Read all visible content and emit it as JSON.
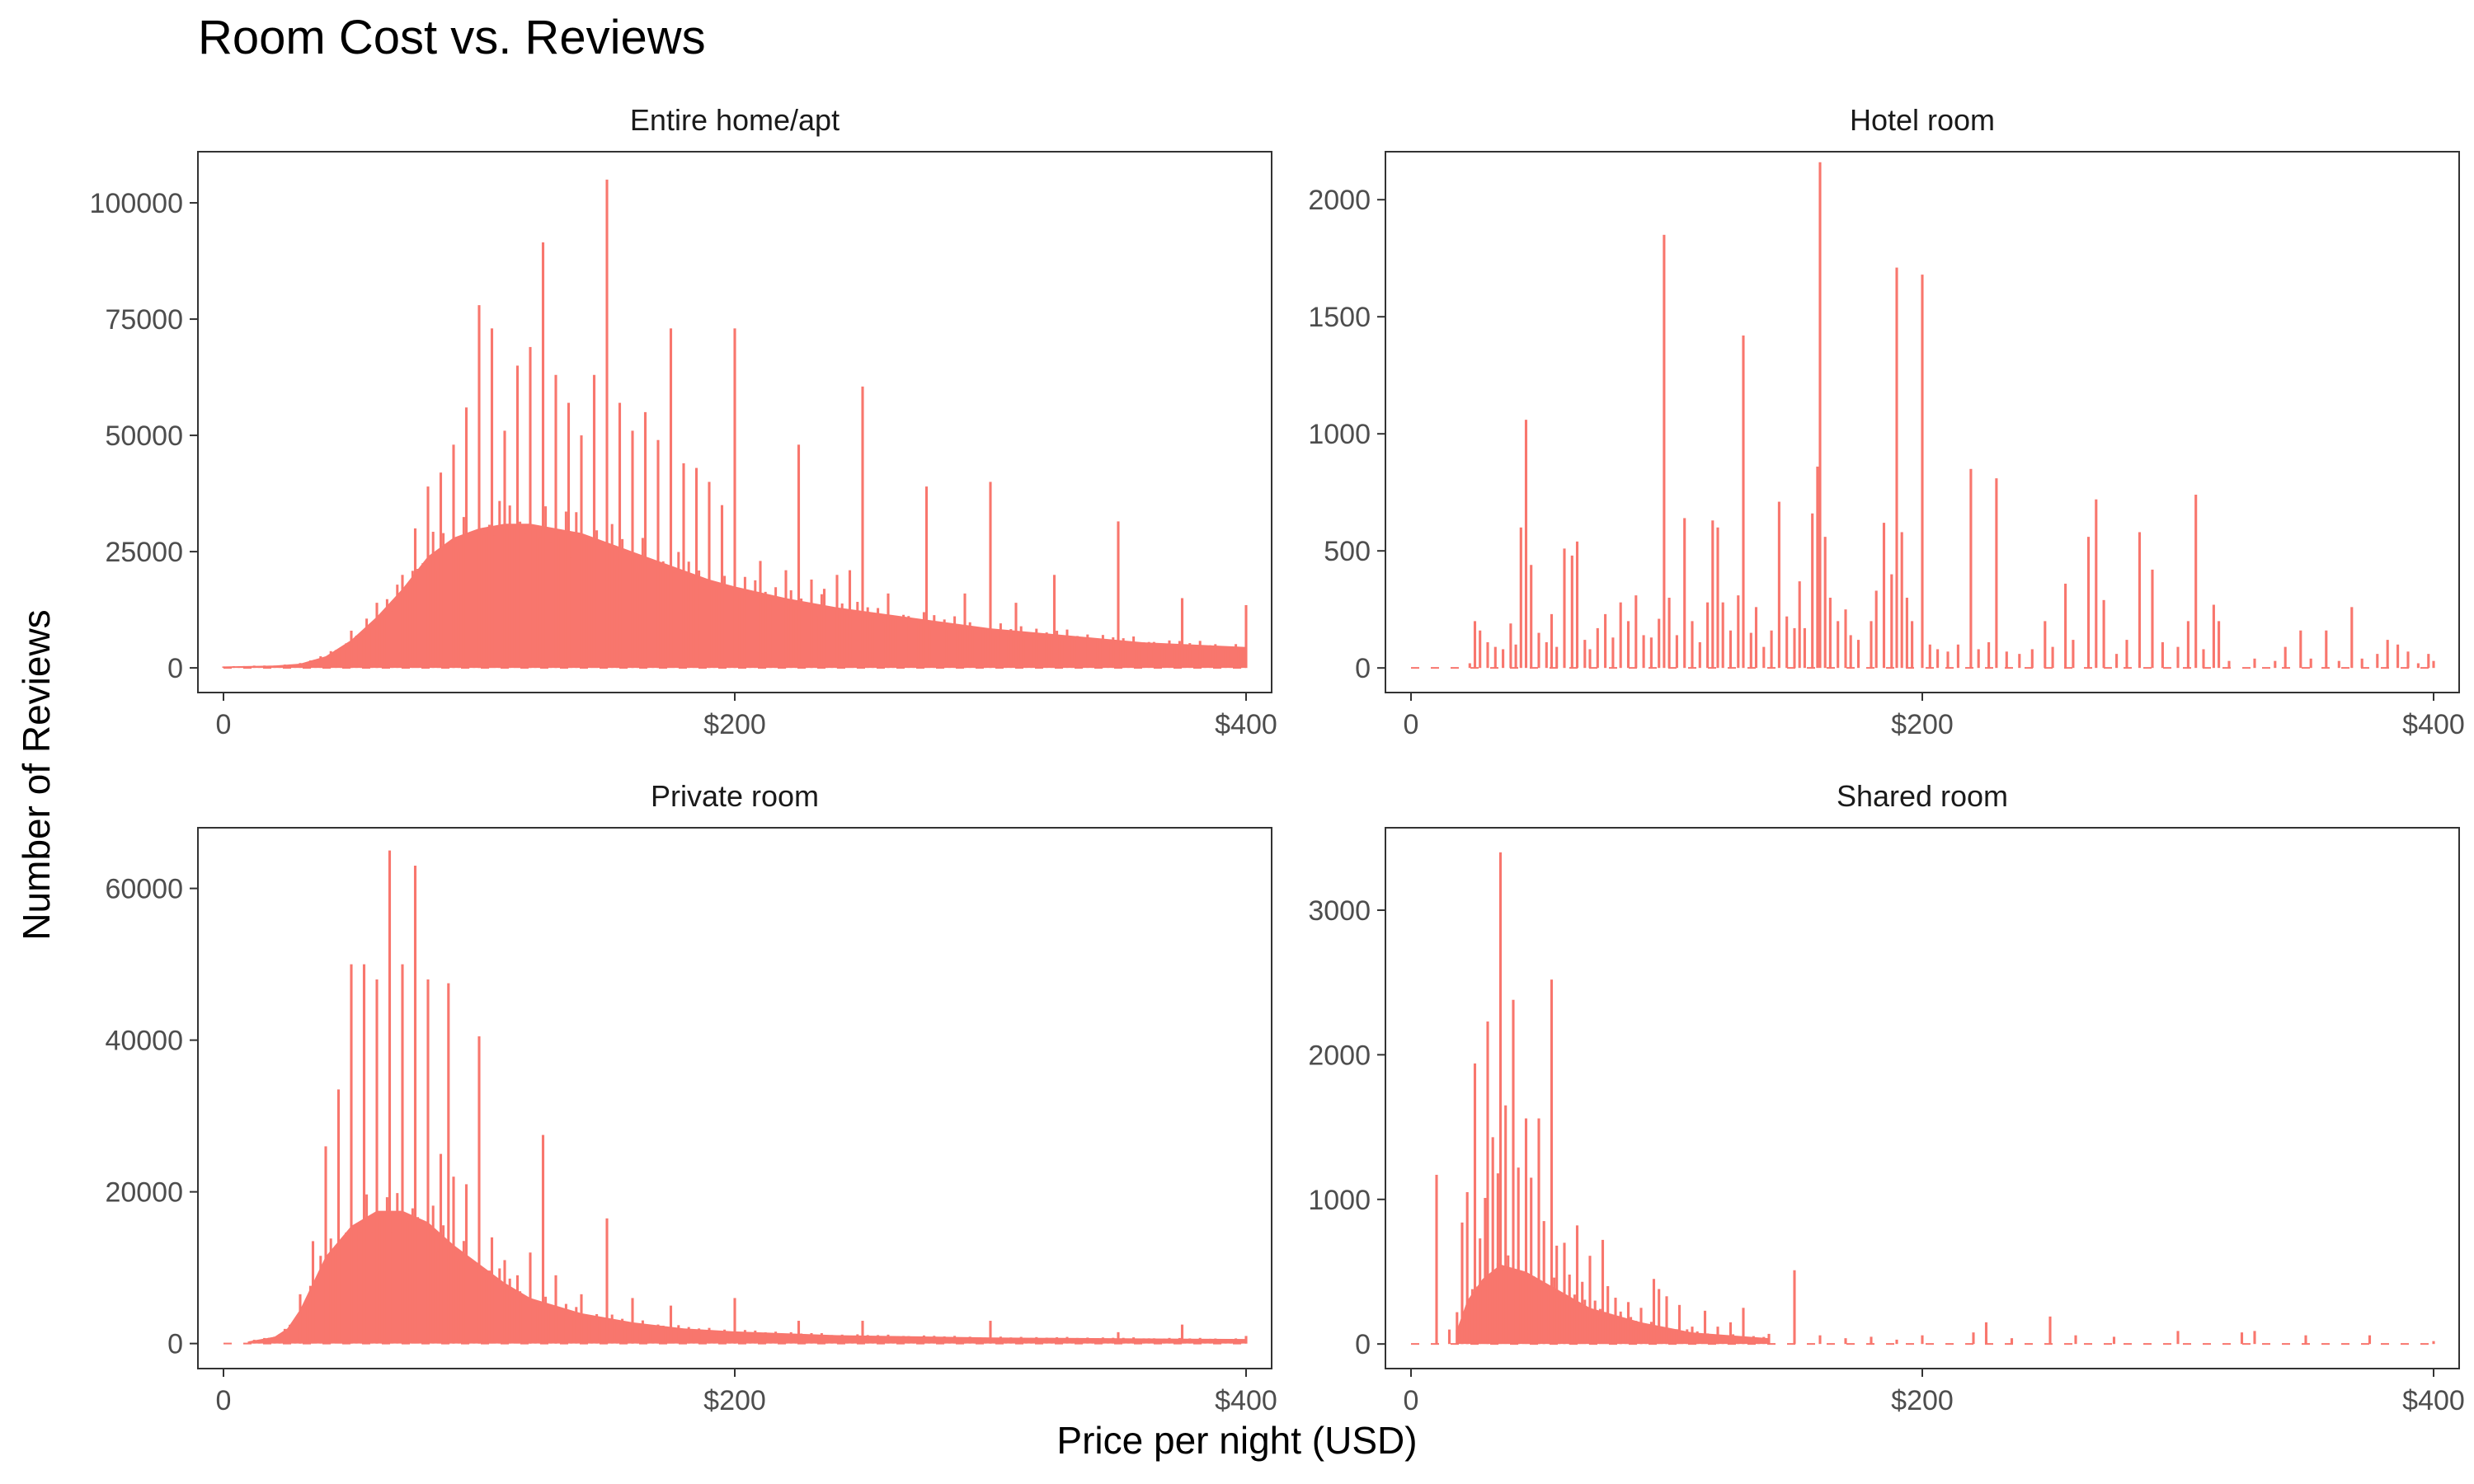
{
  "title": "Room Cost vs. Reviews",
  "xlabel": "Price per night (USD)",
  "ylabel": "Number of Reviews",
  "colors": {
    "bars": "#f8766d",
    "panel_border": "#333333",
    "tick_text": "#4d4d4d",
    "strip_text": "#1a1a1a"
  },
  "chart_data": [
    {
      "type": "bar",
      "panel": "Entire home/apt",
      "xlim": [
        -10,
        410
      ],
      "ylim": [
        -5300,
        111000
      ],
      "x_ticks": [
        0,
        200,
        400
      ],
      "x_tick_labels": [
        "0",
        "$200",
        "$400"
      ],
      "y_ticks": [
        0,
        25000,
        50000,
        75000,
        100000
      ],
      "y_tick_labels": [
        "0",
        "25000",
        "50000",
        "75000",
        "100000"
      ],
      "envelope": [
        [
          0,
          300
        ],
        [
          20,
          500
        ],
        [
          30,
          900
        ],
        [
          40,
          2500
        ],
        [
          50,
          6000
        ],
        [
          60,
          11000
        ],
        [
          70,
          17000
        ],
        [
          80,
          24000
        ],
        [
          90,
          28000
        ],
        [
          100,
          30000
        ],
        [
          110,
          31000
        ],
        [
          120,
          31000
        ],
        [
          130,
          30000
        ],
        [
          140,
          29000
        ],
        [
          150,
          27000
        ],
        [
          160,
          25000
        ],
        [
          170,
          23000
        ],
        [
          180,
          21000
        ],
        [
          190,
          19000
        ],
        [
          200,
          17500
        ],
        [
          220,
          15000
        ],
        [
          240,
          13000
        ],
        [
          260,
          11500
        ],
        [
          280,
          10000
        ],
        [
          300,
          8500
        ],
        [
          330,
          7000
        ],
        [
          360,
          5500
        ],
        [
          400,
          4500
        ]
      ],
      "spikes": [
        [
          50,
          8000
        ],
        [
          60,
          14000
        ],
        [
          70,
          20000
        ],
        [
          75,
          30000
        ],
        [
          80,
          39000
        ],
        [
          85,
          42000
        ],
        [
          90,
          48000
        ],
        [
          95,
          56000
        ],
        [
          100,
          78000
        ],
        [
          105,
          73000
        ],
        [
          110,
          51000
        ],
        [
          115,
          65000
        ],
        [
          120,
          69000
        ],
        [
          125,
          91500
        ],
        [
          130,
          63000
        ],
        [
          135,
          57000
        ],
        [
          140,
          50000
        ],
        [
          145,
          63000
        ],
        [
          150,
          105000
        ],
        [
          155,
          57000
        ],
        [
          160,
          51000
        ],
        [
          165,
          55000
        ],
        [
          170,
          49000
        ],
        [
          175,
          73000
        ],
        [
          180,
          44000
        ],
        [
          185,
          43000
        ],
        [
          190,
          40000
        ],
        [
          195,
          35000
        ],
        [
          200,
          73000
        ],
        [
          210,
          23000
        ],
        [
          220,
          21000
        ],
        [
          225,
          48000
        ],
        [
          230,
          19000
        ],
        [
          235,
          17000
        ],
        [
          240,
          20000
        ],
        [
          245,
          21000
        ],
        [
          250,
          60500
        ],
        [
          260,
          16000
        ],
        [
          275,
          39000
        ],
        [
          290,
          16000
        ],
        [
          300,
          40000
        ],
        [
          310,
          14000
        ],
        [
          325,
          20000
        ],
        [
          350,
          31500
        ],
        [
          375,
          15000
        ],
        [
          400,
          13500
        ]
      ]
    },
    {
      "type": "bar",
      "panel": "Hotel room",
      "xlim": [
        -10,
        410
      ],
      "ylim": [
        -105,
        2205
      ],
      "x_ticks": [
        0,
        200,
        400
      ],
      "x_tick_labels": [
        "0",
        "$200",
        "$400"
      ],
      "y_ticks": [
        0,
        500,
        1000,
        1500,
        2000
      ],
      "y_tick_labels": [
        "0",
        "500",
        "1000",
        "1500",
        "2000"
      ],
      "envelope": [],
      "spikes": [
        [
          23,
          20
        ],
        [
          25,
          200
        ],
        [
          27,
          160
        ],
        [
          30,
          110
        ],
        [
          33,
          90
        ],
        [
          36,
          80
        ],
        [
          39,
          190
        ],
        [
          41,
          100
        ],
        [
          43,
          600
        ],
        [
          45,
          1060
        ],
        [
          47,
          440
        ],
        [
          50,
          150
        ],
        [
          53,
          110
        ],
        [
          55,
          230
        ],
        [
          57,
          90
        ],
        [
          60,
          510
        ],
        [
          63,
          480
        ],
        [
          65,
          540
        ],
        [
          68,
          120
        ],
        [
          70,
          80
        ],
        [
          73,
          170
        ],
        [
          76,
          230
        ],
        [
          79,
          130
        ],
        [
          82,
          280
        ],
        [
          85,
          200
        ],
        [
          88,
          310
        ],
        [
          91,
          140
        ],
        [
          94,
          130
        ],
        [
          97,
          210
        ],
        [
          99,
          1850
        ],
        [
          101,
          300
        ],
        [
          104,
          140
        ],
        [
          107,
          640
        ],
        [
          110,
          200
        ],
        [
          113,
          110
        ],
        [
          116,
          280
        ],
        [
          118,
          630
        ],
        [
          120,
          600
        ],
        [
          122,
          280
        ],
        [
          125,
          160
        ],
        [
          128,
          310
        ],
        [
          130,
          1420
        ],
        [
          133,
          150
        ],
        [
          135,
          260
        ],
        [
          138,
          90
        ],
        [
          141,
          160
        ],
        [
          144,
          710
        ],
        [
          147,
          220
        ],
        [
          150,
          170
        ],
        [
          152,
          370
        ],
        [
          154,
          170
        ],
        [
          157,
          660
        ],
        [
          159,
          860
        ],
        [
          160,
          2160
        ],
        [
          162,
          560
        ],
        [
          164,
          300
        ],
        [
          167,
          200
        ],
        [
          170,
          250
        ],
        [
          172,
          140
        ],
        [
          175,
          120
        ],
        [
          180,
          200
        ],
        [
          182,
          330
        ],
        [
          185,
          620
        ],
        [
          188,
          400
        ],
        [
          190,
          1710
        ],
        [
          192,
          580
        ],
        [
          194,
          300
        ],
        [
          196,
          200
        ],
        [
          200,
          1680
        ],
        [
          203,
          100
        ],
        [
          206,
          80
        ],
        [
          210,
          70
        ],
        [
          214,
          100
        ],
        [
          219,
          850
        ],
        [
          222,
          80
        ],
        [
          226,
          110
        ],
        [
          229,
          810
        ],
        [
          233,
          70
        ],
        [
          238,
          60
        ],
        [
          243,
          80
        ],
        [
          248,
          200
        ],
        [
          251,
          90
        ],
        [
          256,
          360
        ],
        [
          259,
          120
        ],
        [
          265,
          560
        ],
        [
          268,
          720
        ],
        [
          271,
          290
        ],
        [
          276,
          60
        ],
        [
          280,
          120
        ],
        [
          285,
          580
        ],
        [
          290,
          420
        ],
        [
          294,
          110
        ],
        [
          300,
          90
        ],
        [
          304,
          200
        ],
        [
          307,
          740
        ],
        [
          310,
          80
        ],
        [
          314,
          270
        ],
        [
          316,
          200
        ],
        [
          320,
          30
        ],
        [
          330,
          40
        ],
        [
          338,
          30
        ],
        [
          342,
          90
        ],
        [
          348,
          160
        ],
        [
          352,
          40
        ],
        [
          358,
          160
        ],
        [
          363,
          30
        ],
        [
          368,
          260
        ],
        [
          372,
          40
        ],
        [
          378,
          60
        ],
        [
          382,
          120
        ],
        [
          386,
          100
        ],
        [
          390,
          70
        ],
        [
          394,
          20
        ],
        [
          398,
          60
        ],
        [
          400,
          30
        ]
      ]
    },
    {
      "type": "bar",
      "panel": "Private room",
      "xlim": [
        -10,
        410
      ],
      "ylim": [
        -3300,
        68000
      ],
      "x_ticks": [
        0,
        200,
        400
      ],
      "x_tick_labels": [
        "0",
        "$200",
        "$400"
      ],
      "y_ticks": [
        0,
        20000,
        40000,
        60000
      ],
      "y_tick_labels": [
        "0",
        "20000",
        "40000",
        "60000"
      ],
      "envelope": [
        [
          10,
          300
        ],
        [
          20,
          900
        ],
        [
          25,
          2000
        ],
        [
          30,
          4500
        ],
        [
          35,
          8000
        ],
        [
          40,
          11500
        ],
        [
          50,
          15500
        ],
        [
          60,
          17500
        ],
        [
          70,
          17500
        ],
        [
          80,
          16000
        ],
        [
          90,
          13000
        ],
        [
          100,
          10500
        ],
        [
          110,
          8000
        ],
        [
          120,
          6000
        ],
        [
          140,
          4000
        ],
        [
          160,
          2800
        ],
        [
          180,
          2000
        ],
        [
          200,
          1600
        ],
        [
          240,
          1100
        ],
        [
          300,
          800
        ],
        [
          400,
          600
        ]
      ],
      "spikes": [
        [
          30,
          6500
        ],
        [
          35,
          13500
        ],
        [
          40,
          26000
        ],
        [
          45,
          33500
        ],
        [
          50,
          50000
        ],
        [
          55,
          50000
        ],
        [
          60,
          48000
        ],
        [
          65,
          65000
        ],
        [
          70,
          50000
        ],
        [
          75,
          63000
        ],
        [
          80,
          48000
        ],
        [
          85,
          25000
        ],
        [
          88,
          47500
        ],
        [
          90,
          22000
        ],
        [
          95,
          21000
        ],
        [
          100,
          40500
        ],
        [
          105,
          14000
        ],
        [
          110,
          11000
        ],
        [
          115,
          9000
        ],
        [
          120,
          12000
        ],
        [
          125,
          27500
        ],
        [
          130,
          9000
        ],
        [
          140,
          6500
        ],
        [
          150,
          16500
        ],
        [
          160,
          6000
        ],
        [
          175,
          5000
        ],
        [
          200,
          6000
        ],
        [
          225,
          3000
        ],
        [
          250,
          3000
        ],
        [
          300,
          3000
        ],
        [
          350,
          1500
        ],
        [
          375,
          2500
        ],
        [
          400,
          1000
        ]
      ]
    },
    {
      "type": "bar",
      "panel": "Shared room",
      "xlim": [
        -10,
        410
      ],
      "ylim": [
        -170,
        3570
      ],
      "x_ticks": [
        0,
        200,
        400
      ],
      "x_tick_labels": [
        "0",
        "$200",
        "$400"
      ],
      "y_ticks": [
        0,
        1000,
        2000,
        3000
      ],
      "y_tick_labels": [
        "0",
        "1000",
        "2000",
        "3000"
      ],
      "envelope": [
        [
          18,
          100
        ],
        [
          22,
          300
        ],
        [
          28,
          450
        ],
        [
          35,
          550
        ],
        [
          45,
          500
        ],
        [
          55,
          400
        ],
        [
          70,
          250
        ],
        [
          90,
          150
        ],
        [
          110,
          80
        ],
        [
          140,
          40
        ]
      ],
      "spikes": [
        [
          10,
          1170
        ],
        [
          15,
          100
        ],
        [
          18,
          220
        ],
        [
          20,
          840
        ],
        [
          22,
          1050
        ],
        [
          25,
          1940
        ],
        [
          27,
          730
        ],
        [
          29,
          1010
        ],
        [
          30,
          2230
        ],
        [
          32,
          1430
        ],
        [
          34,
          1180
        ],
        [
          35,
          3400
        ],
        [
          37,
          1650
        ],
        [
          40,
          2380
        ],
        [
          42,
          1220
        ],
        [
          45,
          1560
        ],
        [
          47,
          1150
        ],
        [
          50,
          1560
        ],
        [
          52,
          850
        ],
        [
          55,
          2520
        ],
        [
          57,
          680
        ],
        [
          60,
          700
        ],
        [
          62,
          480
        ],
        [
          65,
          820
        ],
        [
          67,
          430
        ],
        [
          70,
          610
        ],
        [
          72,
          300
        ],
        [
          75,
          720
        ],
        [
          77,
          400
        ],
        [
          80,
          320
        ],
        [
          82,
          200
        ],
        [
          85,
          290
        ],
        [
          88,
          160
        ],
        [
          90,
          250
        ],
        [
          95,
          450
        ],
        [
          97,
          380
        ],
        [
          100,
          330
        ],
        [
          105,
          270
        ],
        [
          110,
          120
        ],
        [
          115,
          230
        ],
        [
          120,
          120
        ],
        [
          125,
          150
        ],
        [
          130,
          250
        ],
        [
          140,
          70
        ],
        [
          150,
          510
        ],
        [
          160,
          60
        ],
        [
          170,
          40
        ],
        [
          180,
          50
        ],
        [
          190,
          30
        ],
        [
          200,
          60
        ],
        [
          220,
          80
        ],
        [
          225,
          150
        ],
        [
          235,
          40
        ],
        [
          250,
          190
        ],
        [
          260,
          60
        ],
        [
          275,
          50
        ],
        [
          300,
          90
        ],
        [
          325,
          80
        ],
        [
          330,
          90
        ],
        [
          350,
          60
        ],
        [
          375,
          60
        ],
        [
          400,
          20
        ]
      ]
    }
  ],
  "panel_titles": [
    "Entire home/apt",
    "Hotel room",
    "Private room",
    "Shared room"
  ]
}
